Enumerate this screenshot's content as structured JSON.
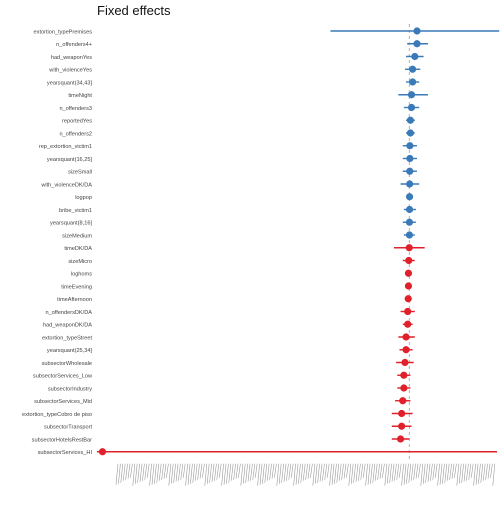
{
  "chart_data": {
    "type": "scatter",
    "title": "Fixed effects",
    "xlabel": "",
    "ylabel": "",
    "reference_line": 0,
    "colors": {
      "positive": "#3a7ab8",
      "negative": "#e0202a",
      "reference": "#b0b0b0"
    },
    "xlim": [
      -2.85,
      0.8
    ],
    "x_tick_labels": "illegible",
    "terms": [
      {
        "label": "extortion_typePremises",
        "estimate": 0.07,
        "lower": -0.72,
        "upper": 0.82,
        "sign": "positive"
      },
      {
        "label": "n_offenders4+",
        "estimate": 0.07,
        "lower": -0.02,
        "upper": 0.17,
        "sign": "positive"
      },
      {
        "label": "had_weaponYes",
        "estimate": 0.05,
        "lower": -0.03,
        "upper": 0.13,
        "sign": "positive"
      },
      {
        "label": "with_violenceYes",
        "estimate": 0.03,
        "lower": -0.04,
        "upper": 0.1,
        "sign": "positive"
      },
      {
        "label": "yearsquant(34,43]",
        "estimate": 0.03,
        "lower": -0.03,
        "upper": 0.09,
        "sign": "positive"
      },
      {
        "label": "timeNight",
        "estimate": 0.02,
        "lower": -0.1,
        "upper": 0.17,
        "sign": "positive"
      },
      {
        "label": "n_offenders3",
        "estimate": 0.02,
        "lower": -0.05,
        "upper": 0.09,
        "sign": "positive"
      },
      {
        "label": "reportedYes",
        "estimate": 0.01,
        "lower": -0.03,
        "upper": 0.05,
        "sign": "positive"
      },
      {
        "label": "n_offenders2",
        "estimate": 0.01,
        "lower": -0.03,
        "upper": 0.05,
        "sign": "positive"
      },
      {
        "label": "rep_extortion_victim1",
        "estimate": 0.005,
        "lower": -0.06,
        "upper": 0.07,
        "sign": "positive"
      },
      {
        "label": "yearsquant(16,25]",
        "estimate": 0.005,
        "lower": -0.06,
        "upper": 0.07,
        "sign": "positive"
      },
      {
        "label": "sizeSmall",
        "estimate": 0.004,
        "lower": -0.06,
        "upper": 0.07,
        "sign": "positive"
      },
      {
        "label": "with_violenceDK/DA",
        "estimate": 0.003,
        "lower": -0.08,
        "upper": 0.09,
        "sign": "positive"
      },
      {
        "label": "logpop",
        "estimate": 0.002,
        "lower": -0.02,
        "upper": 0.03,
        "sign": "positive"
      },
      {
        "label": "bribe_victim1",
        "estimate": 0.002,
        "lower": -0.05,
        "upper": 0.06,
        "sign": "positive"
      },
      {
        "label": "yearsquant(8,16]",
        "estimate": 0.001,
        "lower": -0.06,
        "upper": 0.06,
        "sign": "positive"
      },
      {
        "label": "sizeMedium",
        "estimate": 0.001,
        "lower": -0.05,
        "upper": 0.05,
        "sign": "positive"
      },
      {
        "label": "timeDK/DA",
        "estimate": -0.001,
        "lower": -0.14,
        "upper": 0.14,
        "sign": "negative"
      },
      {
        "label": "sizeMicro",
        "estimate": -0.005,
        "lower": -0.06,
        "upper": 0.05,
        "sign": "negative"
      },
      {
        "label": "loghoms",
        "estimate": -0.008,
        "lower": -0.03,
        "upper": 0.02,
        "sign": "negative"
      },
      {
        "label": "timeEvening",
        "estimate": -0.008,
        "lower": -0.03,
        "upper": 0.02,
        "sign": "negative"
      },
      {
        "label": "timeAfternoon",
        "estimate": -0.01,
        "lower": -0.04,
        "upper": 0.02,
        "sign": "negative"
      },
      {
        "label": "n_offendersDK/DA",
        "estimate": -0.015,
        "lower": -0.08,
        "upper": 0.05,
        "sign": "negative"
      },
      {
        "label": "had_weaponDK/DA",
        "estimate": -0.015,
        "lower": -0.06,
        "upper": 0.03,
        "sign": "negative"
      },
      {
        "label": "extortion_typeStreet",
        "estimate": -0.03,
        "lower": -0.1,
        "upper": 0.05,
        "sign": "negative"
      },
      {
        "label": "yearsquant(25,34]",
        "estimate": -0.03,
        "lower": -0.09,
        "upper": 0.03,
        "sign": "negative"
      },
      {
        "label": "subsectorWholesale",
        "estimate": -0.04,
        "lower": -0.12,
        "upper": 0.04,
        "sign": "negative"
      },
      {
        "label": "subsectorServices_Low",
        "estimate": -0.05,
        "lower": -0.11,
        "upper": 0.01,
        "sign": "negative"
      },
      {
        "label": "subsectorIndustry",
        "estimate": -0.05,
        "lower": -0.11,
        "upper": 0.01,
        "sign": "negative"
      },
      {
        "label": "subsectorServices_Mid",
        "estimate": -0.06,
        "lower": -0.13,
        "upper": 0.01,
        "sign": "negative"
      },
      {
        "label": "extortion_typeCobro de piso",
        "estimate": -0.07,
        "lower": -0.16,
        "upper": 0.03,
        "sign": "negative"
      },
      {
        "label": "subsectorTransport",
        "estimate": -0.07,
        "lower": -0.16,
        "upper": 0.02,
        "sign": "negative"
      },
      {
        "label": "subsectorHotelsRestBar",
        "estimate": -0.08,
        "lower": -0.16,
        "upper": 0.0,
        "sign": "negative"
      },
      {
        "label": "subsectorServices_HI",
        "estimate": -2.8,
        "lower": -2.85,
        "upper": 0.8,
        "sign": "negative"
      }
    ]
  }
}
